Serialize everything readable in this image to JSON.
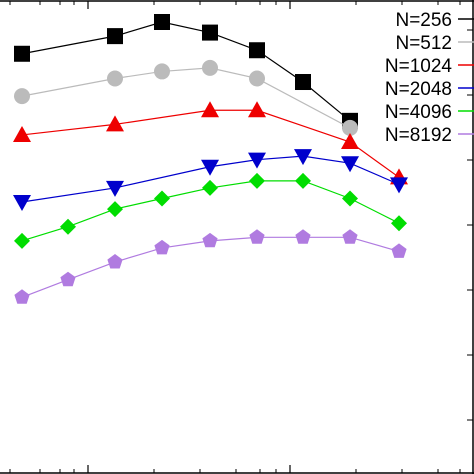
{
  "chart_data": {
    "type": "line",
    "x": [
      1,
      2,
      3,
      4,
      5,
      6,
      7,
      8,
      9
    ],
    "ylim": [
      0,
      10
    ],
    "grid": false,
    "legend_position": "top-right",
    "series": [
      {
        "name": "N=256",
        "color": "#000000",
        "marker": "square",
        "values": [
          9.1,
          null,
          9.6,
          10.0,
          9.7,
          9.2,
          8.3,
          7.2,
          null
        ]
      },
      {
        "name": "N=512",
        "color": "#bbbbbb",
        "marker": "circle",
        "values": [
          7.9,
          null,
          8.4,
          8.6,
          8.7,
          8.4,
          null,
          7.0,
          null
        ]
      },
      {
        "name": "N=1024",
        "color": "#ee0000",
        "marker": "triangle-up",
        "values": [
          6.8,
          null,
          7.1,
          null,
          7.5,
          7.5,
          null,
          6.6,
          5.6
        ]
      },
      {
        "name": "N=2048",
        "color": "#0000cc",
        "marker": "triangle-down",
        "values": [
          4.9,
          null,
          5.3,
          null,
          5.9,
          6.1,
          6.2,
          6.0,
          5.4
        ]
      },
      {
        "name": "N=4096",
        "color": "#00dd00",
        "marker": "diamond",
        "values": [
          3.8,
          4.2,
          4.7,
          5.0,
          5.3,
          5.5,
          5.5,
          5.0,
          4.3
        ]
      },
      {
        "name": "N=8192",
        "color": "#b07be0",
        "marker": "pentagon",
        "values": [
          2.2,
          2.7,
          3.2,
          3.6,
          3.8,
          3.9,
          3.9,
          3.9,
          3.5
        ]
      }
    ]
  }
}
